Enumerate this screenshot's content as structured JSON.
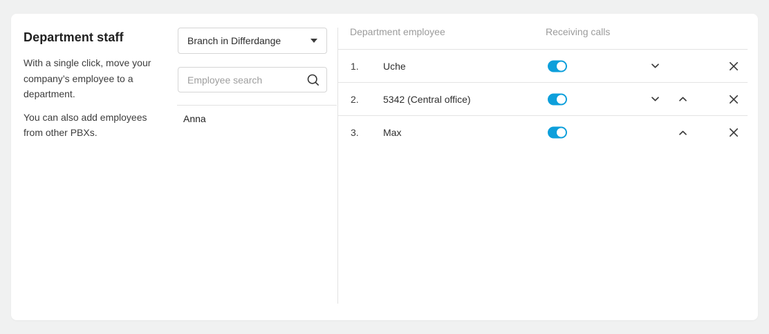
{
  "colors": {
    "page_background": "#f0f1f1",
    "card_background": "#ffffff",
    "accent_toggle_on": "#0d9fdb",
    "divider": "#e2e2e2",
    "muted_text": "#9b9b9b"
  },
  "icons": {
    "dropdown": "caret-down-icon",
    "search": "search-icon",
    "move_down": "chevron-down-icon",
    "move_up": "chevron-up-icon",
    "remove": "close-icon"
  },
  "panel": {
    "title": "Department staff",
    "description_1": "With a single click, move your company’s employee to a department.",
    "description_2": "You can also add employees from other PBXs."
  },
  "controls": {
    "branch_dropdown": {
      "value": "Branch in Differdange"
    },
    "employee_search": {
      "placeholder": "Employee search",
      "value": ""
    },
    "available_employees": [
      {
        "name": "Anna"
      }
    ]
  },
  "table": {
    "headers": {
      "employee": "Department employee",
      "receiving_calls": "Receiving calls"
    },
    "rows": [
      {
        "index": "1.",
        "name": "Uche",
        "receiving_calls": true,
        "can_move_down": true,
        "can_move_up": false
      },
      {
        "index": "2.",
        "name": "5342 (Central office)",
        "receiving_calls": true,
        "can_move_down": true,
        "can_move_up": true
      },
      {
        "index": "3.",
        "name": "Max",
        "receiving_calls": true,
        "can_move_down": false,
        "can_move_up": true
      }
    ]
  }
}
